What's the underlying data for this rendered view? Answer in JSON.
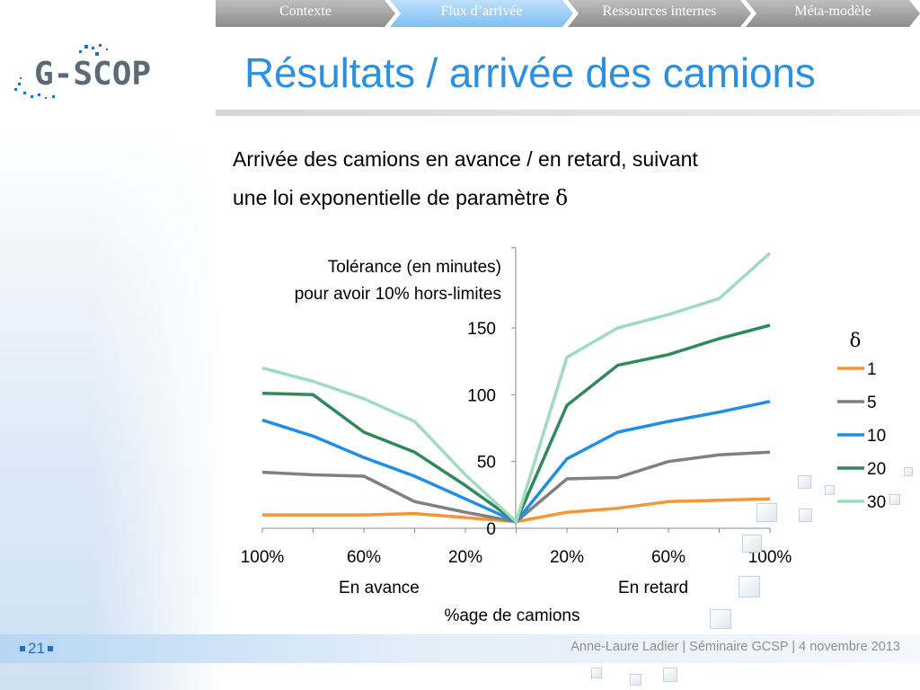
{
  "nav": {
    "tabs": [
      {
        "label": "Contexte",
        "active": false
      },
      {
        "label": "Flux d’arrivée",
        "active": true
      },
      {
        "label": "Ressources internes",
        "active": false
      },
      {
        "label": "Méta-modèle",
        "active": false
      }
    ]
  },
  "logo": {
    "text": "G-SCOP"
  },
  "slide": {
    "title": "Résultats / arrivée des camions",
    "subtitle_line1": "Arrivée des camions en avance / en retard, suivant",
    "subtitle_line2": "une loi exponentielle de paramètre",
    "subtitle_symbol": "δ"
  },
  "chart_data": {
    "type": "line",
    "ylabel_line1": "Tolérance (en minutes)",
    "ylabel_line2": "pour avoir 10% hors-limites",
    "xlabel": "%age de camions",
    "x_group_labels": [
      "En avance",
      "En retard"
    ],
    "x_tick_labels": [
      "100%",
      "60%",
      "20%",
      "20%",
      "60%",
      "100%"
    ],
    "x": [
      -100,
      -80,
      -60,
      -40,
      -20,
      0,
      20,
      40,
      60,
      80,
      100
    ],
    "y_ticks": [
      0,
      50,
      100,
      150
    ],
    "ylim": [
      0,
      210
    ],
    "legend_title": "δ",
    "legend_position": "right",
    "series": [
      {
        "name": "1",
        "color": "#f79433",
        "values": [
          10,
          10,
          10,
          11,
          8,
          5,
          12,
          15,
          20,
          21,
          22
        ]
      },
      {
        "name": "5",
        "color": "#808080",
        "values": [
          42,
          40,
          39,
          20,
          12,
          5,
          37,
          38,
          50,
          55,
          57
        ]
      },
      {
        "name": "10",
        "color": "#1f8fe6",
        "values": [
          81,
          69,
          53,
          39,
          22,
          5,
          52,
          72,
          80,
          87,
          95
        ]
      },
      {
        "name": "20",
        "color": "#2f8a5a",
        "values": [
          101,
          100,
          72,
          57,
          32,
          5,
          92,
          122,
          130,
          142,
          152
        ]
      },
      {
        "name": "30",
        "color": "#9fdcbc",
        "values": [
          120,
          110,
          97,
          80,
          40,
          5,
          128,
          150,
          160,
          172,
          206
        ]
      }
    ]
  },
  "footer": {
    "page": "21",
    "text": "Anne-Laure Ladier | Séminaire GCSP | 4 novembre 2013"
  }
}
